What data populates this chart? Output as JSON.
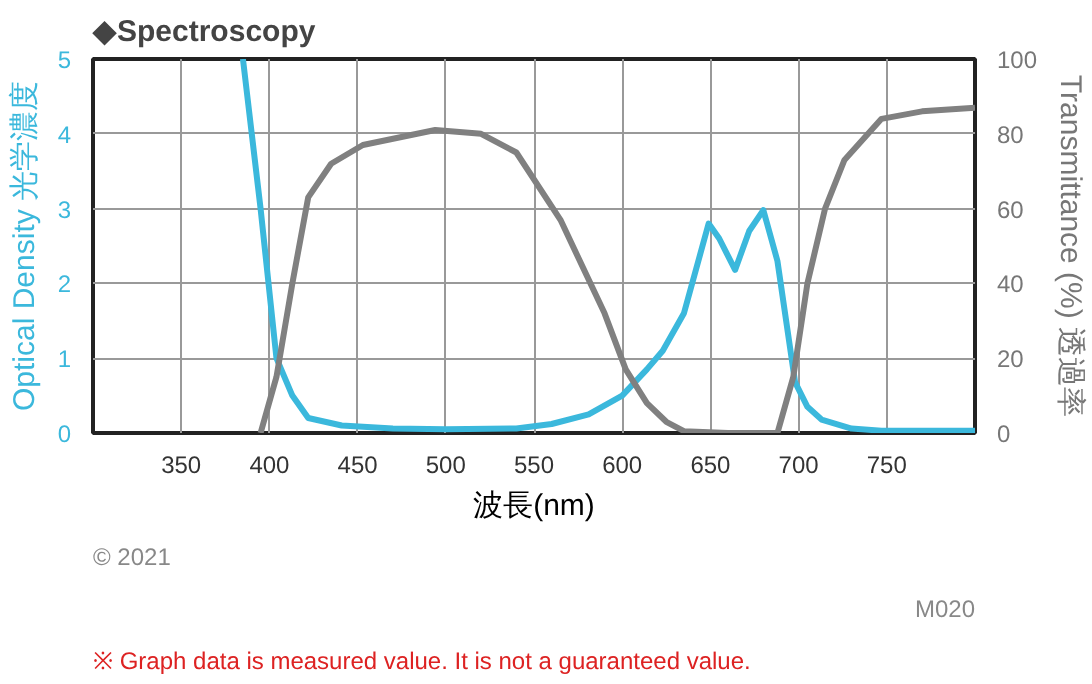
{
  "chart_data": {
    "type": "line",
    "title": "◆Spectroscopy",
    "xlabel": "波長(nm)",
    "ylabel": "Optical Density 光学濃度",
    "y2label": "Transmittance (%) 透過率",
    "xlim": [
      300,
      800
    ],
    "xticks": [
      350,
      400,
      450,
      500,
      550,
      600,
      650,
      700,
      750
    ],
    "ylim": [
      0,
      5
    ],
    "yticks": [
      0,
      1,
      2,
      3,
      4,
      5
    ],
    "y2lim": [
      0,
      100
    ],
    "y2ticks": [
      0,
      20,
      40,
      60,
      80,
      100
    ],
    "grid": true,
    "series": [
      {
        "color": "#3bb8dc",
        "x": [
          385,
          395,
          404,
          413,
          422,
          441,
          470,
          500,
          540,
          560,
          581,
          600,
          614,
          623,
          635,
          649,
          655,
          664,
          672,
          680,
          688,
          698,
          705,
          713,
          730,
          747,
          800
        ],
        "values": [
          5,
          3,
          1,
          0.5,
          0.2,
          0.1,
          0.06,
          0.05,
          0.06,
          0.12,
          0.25,
          0.5,
          0.85,
          1.1,
          1.6,
          2.8,
          2.6,
          2.18,
          2.7,
          2.98,
          2.3,
          0.68,
          0.35,
          0.18,
          0.06,
          0.03,
          0.03
        ]
      },
      {
        "color": "#808080",
        "axis": "y2",
        "x": [
          395,
          404,
          413,
          422,
          435,
          453,
          494,
          520,
          540,
          565,
          590,
          602,
          614,
          625,
          635,
          660,
          688,
          697,
          705,
          715,
          726,
          747,
          770,
          800
        ],
        "values": [
          0,
          15,
          40,
          63,
          72,
          77,
          81,
          80,
          75,
          57,
          32,
          17,
          8,
          3,
          0.5,
          0,
          0,
          15,
          40,
          60,
          73,
          84,
          86,
          87
        ]
      }
    ],
    "annotations": [
      "© 2021",
      "M020",
      "※ Graph data is measured value. It is not a guaranteed value."
    ]
  }
}
